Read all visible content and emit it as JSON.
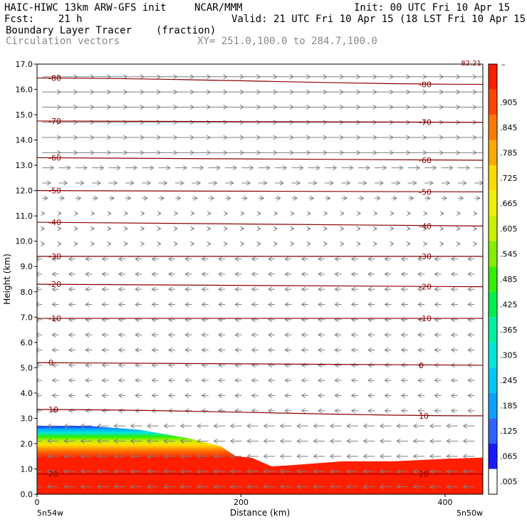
{
  "header": {
    "line1_left": "HAIC-HIWC 13km ARW-GFS init",
    "line1_mid": "NCAR/MMM",
    "line1_right": "Init: 00 UTC Fri 10 Apr 15",
    "line2_left": "Fcst:    21 h",
    "line2_right": "Valid: 21 UTC Fri 10 Apr 15 (18 LST Fri 10 Apr 15)",
    "field_name": "Boundary Layer Tracer",
    "field_units": "(fraction)",
    "overlay_name": "Circulation vectors",
    "xy_range": "XY= 251.0,100.0 to 284.7,100.0"
  },
  "chart_data": {
    "type": "heatmap",
    "title": "Boundary Layer Tracer",
    "xlabel": "Distance (km)",
    "ylabel": "Height (km)",
    "xlim": [
      0,
      437
    ],
    "ylim": [
      0,
      17
    ],
    "x_ticks": [
      0,
      200,
      400
    ],
    "x_tick_labels": [
      "0",
      "200",
      "400"
    ],
    "x_end_labels": [
      "5n54w",
      "5n50w"
    ],
    "y_ticks": [
      0,
      1,
      2,
      3,
      4,
      5,
      6,
      7,
      8,
      9,
      10,
      11,
      12,
      13,
      14,
      15,
      16,
      17
    ],
    "y_tick_labels": [
      "0.0",
      "1.0",
      "2.0",
      "3.0",
      "4.0",
      "5.0",
      "6.0",
      "7.0",
      "8.0",
      "9.0",
      "10.0",
      "11.0",
      "12.0",
      "13.0",
      "14.0",
      "15.0",
      "16.0",
      "17.0"
    ],
    "colorbar": {
      "labels": [
        ".005",
        ".065",
        ".125",
        ".185",
        ".245",
        ".305",
        ".365",
        ".425",
        ".485",
        ".545",
        ".605",
        ".665",
        ".725",
        ".785",
        ".845",
        ".905"
      ],
      "top_label": "–",
      "colors": [
        "#ffffff",
        "#1a1aff",
        "#2e63ff",
        "#0aa0ff",
        "#00c8ff",
        "#00e6dc",
        "#00f0a0",
        "#00f050",
        "#32f000",
        "#82f000",
        "#c8f000",
        "#f0f000",
        "#ffdc00",
        "#ffaa00",
        "#ff7800",
        "#ff4600",
        "#ff1e00"
      ],
      "corner_label": "82.21"
    },
    "boundary_layer_top_km": {
      "x": [
        0,
        50,
        100,
        150,
        180,
        195,
        210,
        230,
        250,
        300,
        350,
        400,
        437
      ],
      "y": [
        2.7,
        2.7,
        2.55,
        2.2,
        1.9,
        1.5,
        1.45,
        1.1,
        1.15,
        1.3,
        1.3,
        1.4,
        1.45
      ]
    },
    "isotherms": [
      {
        "label": "-80",
        "y_left": 16.45,
        "y_right": 16.2
      },
      {
        "label": "-70",
        "y_left": 14.75,
        "y_right": 14.7
      },
      {
        "label": "-60",
        "y_left": 13.3,
        "y_right": 13.2
      },
      {
        "label": "-50",
        "y_left": 12.0,
        "y_right": 11.95
      },
      {
        "label": "-40",
        "y_left": 10.75,
        "y_right": 10.6
      },
      {
        "label": "-30",
        "y_left": 9.4,
        "y_right": 9.4
      },
      {
        "label": "-20",
        "y_left": 8.3,
        "y_right": 8.2
      },
      {
        "label": "-10",
        "y_left": 6.95,
        "y_right": 6.95
      },
      {
        "label": "0",
        "y_left": 5.2,
        "y_right": 5.1
      },
      {
        "label": "10",
        "y_left": 3.35,
        "y_right": 3.1
      },
      {
        "label": "20",
        "y_left": 0.8,
        "y_right": 0.8
      }
    ],
    "vectors": "circulation vectors: westerly aloft (above ~11 km), weak easterly below ~10 km"
  }
}
